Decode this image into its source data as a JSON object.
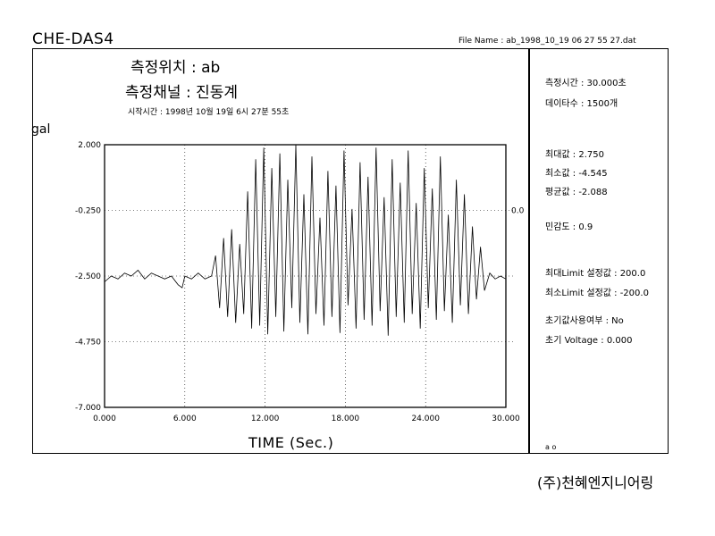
{
  "header": {
    "app_title": "CHE-DAS4",
    "file_name": "File Name : ab_1998_10_19 06 27 55 27.dat"
  },
  "measurement": {
    "location": "측정위치 : ab",
    "channel": "측정채널 : 진동계",
    "start_time": "시작시간 : 1998년 10월 19일 6시 27분 55초"
  },
  "info_panel": {
    "duration": "측정시간 : 30.000초",
    "samples": "데이타수 : 1500개",
    "max": "최대값 : 2.750",
    "min": "최소값 : -4.545",
    "mean": "평균값 : -2.088",
    "sensitivity": "민감도 : 0.9",
    "max_limit": "최대Limit 설정값 : 200.0",
    "min_limit": "최소Limit 설정값 : -200.0",
    "init_use": "초기값사용여부 : No",
    "init_voltage": "초기 Voltage : 0.000",
    "footer": "a o"
  },
  "company": "(주)천혜엔지니어링",
  "chart_data": {
    "type": "line",
    "ylabel": "gal",
    "xlabel": "TIME (Sec.)",
    "xlim": [
      0,
      30
    ],
    "ylim": [
      -7,
      2
    ],
    "x_ticks": [
      "0.000",
      "6.000",
      "12.000",
      "18.000",
      "24.000",
      "30.000"
    ],
    "y_ticks": [
      "2.000",
      "-0.250",
      "-2.500",
      "-4.750",
      "-7.000"
    ],
    "right_tick": "0.0",
    "grid": true,
    "series": [
      {
        "x": [
          0,
          0.5,
          1,
          1.5,
          2,
          2.5,
          3,
          3.5,
          4,
          4.5,
          5,
          5.5,
          5.8,
          6,
          6.5,
          7,
          7.5,
          8,
          8.3,
          8.6,
          8.9,
          9.2,
          9.5,
          9.8,
          10.1,
          10.4,
          10.7,
          11,
          11.3,
          11.6,
          11.9,
          12.2,
          12.5,
          12.8,
          13.1,
          13.4,
          13.7,
          14,
          14.3,
          14.6,
          14.9,
          15.2,
          15.5,
          15.8,
          16.1,
          16.4,
          16.7,
          17,
          17.3,
          17.6,
          17.9,
          18.2,
          18.5,
          18.8,
          19.1,
          19.4,
          19.7,
          20,
          20.3,
          20.6,
          20.9,
          21.2,
          21.5,
          21.8,
          22.1,
          22.4,
          22.7,
          23,
          23.3,
          23.6,
          23.9,
          24.2,
          24.5,
          24.8,
          25.1,
          25.4,
          25.7,
          26,
          26.3,
          26.6,
          26.9,
          27.2,
          27.5,
          27.8,
          28.1,
          28.4,
          28.8,
          29.2,
          29.6,
          30
        ],
        "y": [
          -2.7,
          -2.5,
          -2.6,
          -2.4,
          -2.5,
          -2.3,
          -2.6,
          -2.4,
          -2.5,
          -2.6,
          -2.5,
          -2.8,
          -2.9,
          -2.5,
          -2.6,
          -2.4,
          -2.6,
          -2.5,
          -1.8,
          -3.6,
          -1.2,
          -3.9,
          -0.9,
          -4.1,
          -1.4,
          -3.8,
          0.4,
          -4.3,
          1.5,
          -4.2,
          1.9,
          -4.5,
          1.2,
          -3.9,
          1.7,
          -4.4,
          0.8,
          -3.6,
          2.75,
          -4.1,
          0.3,
          -4.5,
          1.6,
          -3.8,
          -0.5,
          -4.2,
          1.1,
          -3.9,
          0.6,
          -4.45,
          1.8,
          -3.5,
          -0.2,
          -4.3,
          1.4,
          -4.0,
          0.9,
          -4.2,
          1.9,
          -3.7,
          0.2,
          -4.545,
          1.5,
          -3.9,
          0.7,
          -4.1,
          1.8,
          -3.8,
          0.0,
          -4.3,
          1.2,
          -3.6,
          0.5,
          -4.0,
          1.6,
          -3.7,
          -0.4,
          -4.1,
          0.8,
          -3.5,
          0.3,
          -3.8,
          -0.8,
          -3.3,
          -1.5,
          -3.0,
          -2.4,
          -2.6,
          -2.5,
          -2.6
        ]
      }
    ]
  }
}
